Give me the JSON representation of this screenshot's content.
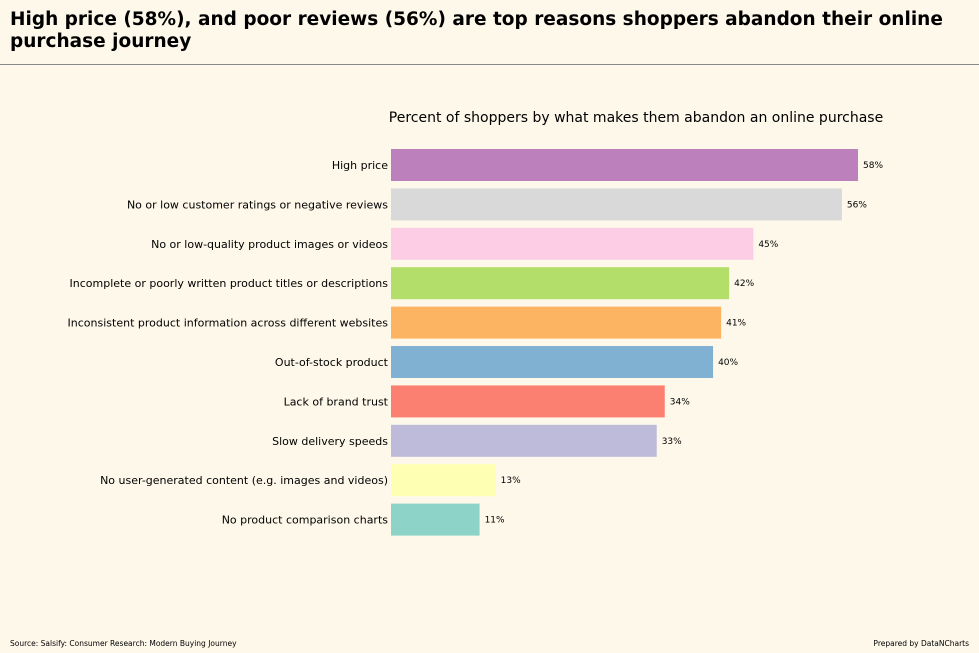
{
  "headline": "High price (58%), and poor reviews (56%) are top reasons shoppers abandon their online purchase journey",
  "footer": {
    "source": "Source: Salsify: Consumer Research: Modern Buying Journey",
    "credit": "Prepared by DataNCharts"
  },
  "chart_data": {
    "type": "bar",
    "orientation": "horizontal",
    "title": "Percent of shoppers by what makes them abandon an online purchase",
    "xlabel": "",
    "ylabel": "",
    "xlim": [
      0,
      58
    ],
    "grid": false,
    "legend": "none",
    "value_suffix": "%",
    "categories": [
      "High price",
      "No or low customer ratings or negative reviews",
      "No or low-quality product images or videos",
      "Incomplete or poorly written product titles or descriptions",
      "Inconsistent product information across different websites",
      "Out-of-stock product",
      "Lack of brand trust",
      "Slow delivery speeds",
      "No user-generated content (e.g. images and videos)",
      "No product comparison charts"
    ],
    "values": [
      58,
      56,
      45,
      42,
      41,
      40,
      34,
      33,
      13,
      11
    ],
    "colors": [
      "#bc80bd",
      "#d9d9d9",
      "#fccde5",
      "#b3de69",
      "#fdb462",
      "#80b1d3",
      "#fb8072",
      "#bebada",
      "#ffffb3",
      "#8dd3c7"
    ]
  }
}
